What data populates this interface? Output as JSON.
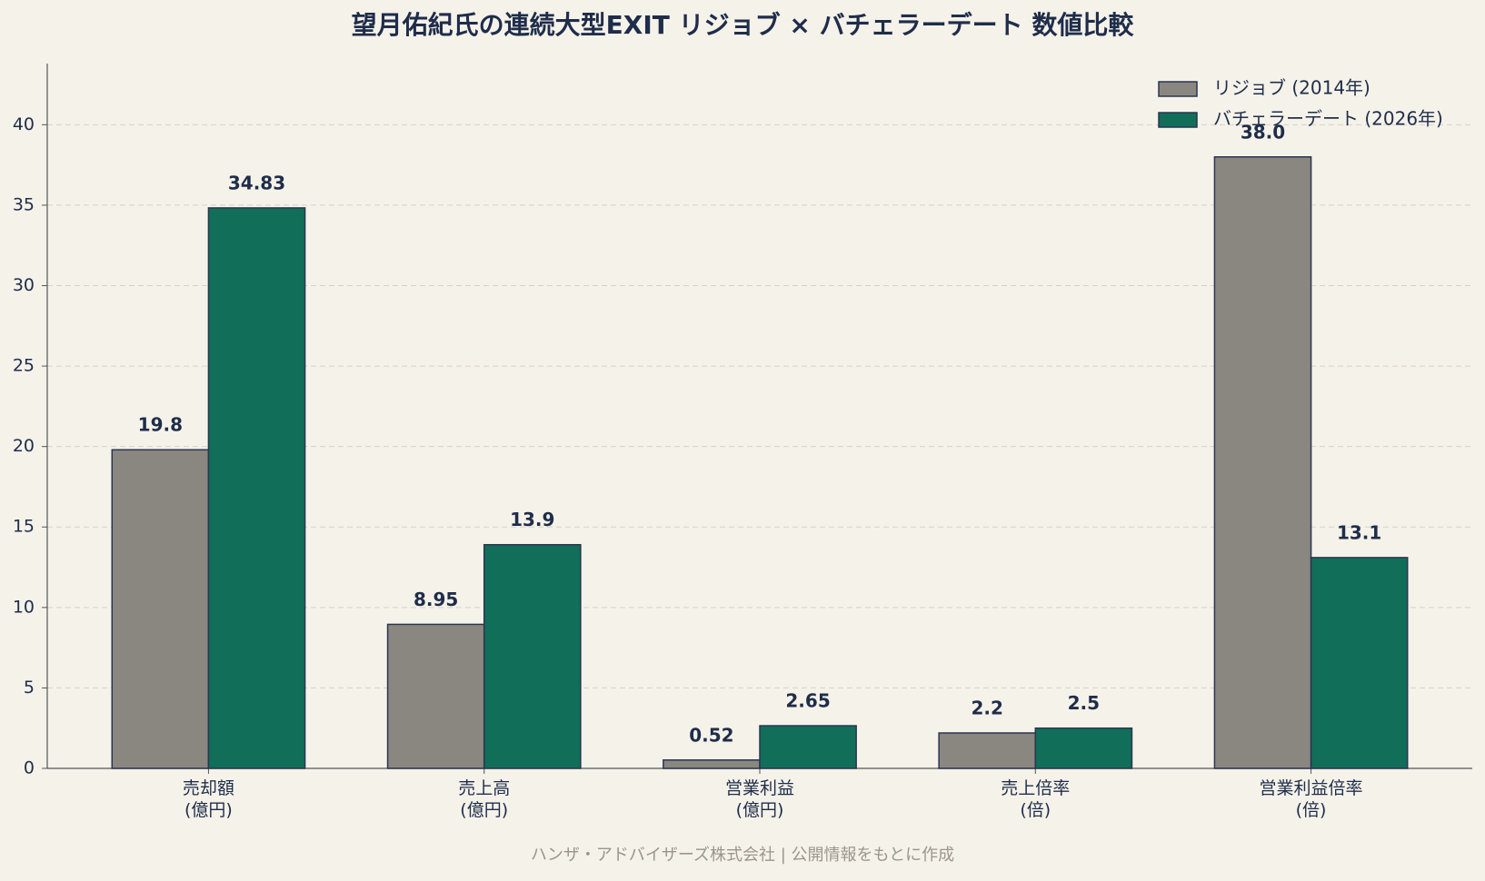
{
  "chart_data": {
    "type": "bar",
    "title": "望月佑紀氏の連続大型EXIT リジョブ × バチェラーデート 数値比較",
    "categories": [
      "売却額\n(億円)",
      "売上高\n(億円)",
      "営業利益\n(億円)",
      "売上倍率\n(倍)",
      "営業利益倍率\n(倍)"
    ],
    "series": [
      {
        "name": "リジョブ (2014年)",
        "color": "#8a8780",
        "values": [
          19.8,
          8.95,
          0.52,
          2.2,
          38.0
        ],
        "value_labels": [
          "19.8",
          "8.95",
          "0.52",
          "2.2",
          "38.0"
        ]
      },
      {
        "name": "バチェラーデート (2026年)",
        "color": "#116e58",
        "values": [
          34.83,
          13.9,
          2.65,
          2.5,
          13.1
        ]
      }
    ],
    "ylim": [
      0,
      43.8
    ],
    "yticks": [
      0,
      5,
      10,
      15,
      20,
      25,
      30,
      35,
      40
    ],
    "grid": true,
    "legend": "upper right",
    "note": "ハンザ・アドバイザーズ株式会社 | 公開情報をもとに作成"
  }
}
